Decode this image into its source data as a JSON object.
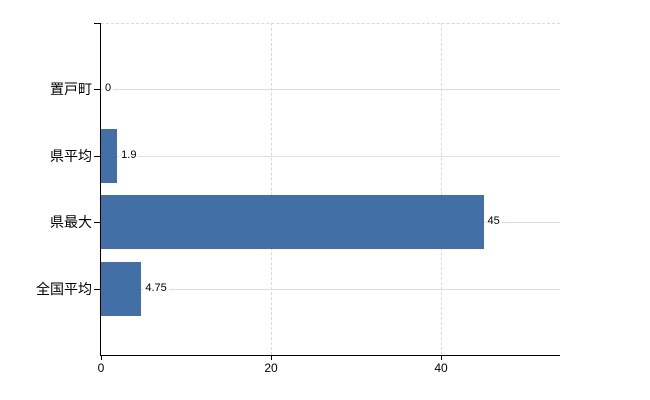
{
  "chart_data": {
    "type": "bar",
    "orientation": "horizontal",
    "title": "",
    "categories": [
      "置戸町",
      "県平均",
      "県最大",
      "全国平均"
    ],
    "values": [
      0,
      1.9,
      45,
      4.75
    ],
    "value_labels": [
      "0",
      "1.9",
      "45",
      "4.75"
    ],
    "x_ticks": [
      0,
      20,
      40
    ],
    "x_tick_labels": [
      "0",
      "20",
      "40"
    ],
    "xlim": [
      0,
      54
    ],
    "xlabel": "",
    "ylabel": "",
    "grid": "on",
    "legend": "none",
    "colors": {
      "bar": "#4270a6",
      "axis": "#000000",
      "gridline_horizontal": "#dce1d7",
      "gridline_vertical": "#d9d9dc",
      "text": "#000000",
      "background": "#ffffff"
    }
  }
}
